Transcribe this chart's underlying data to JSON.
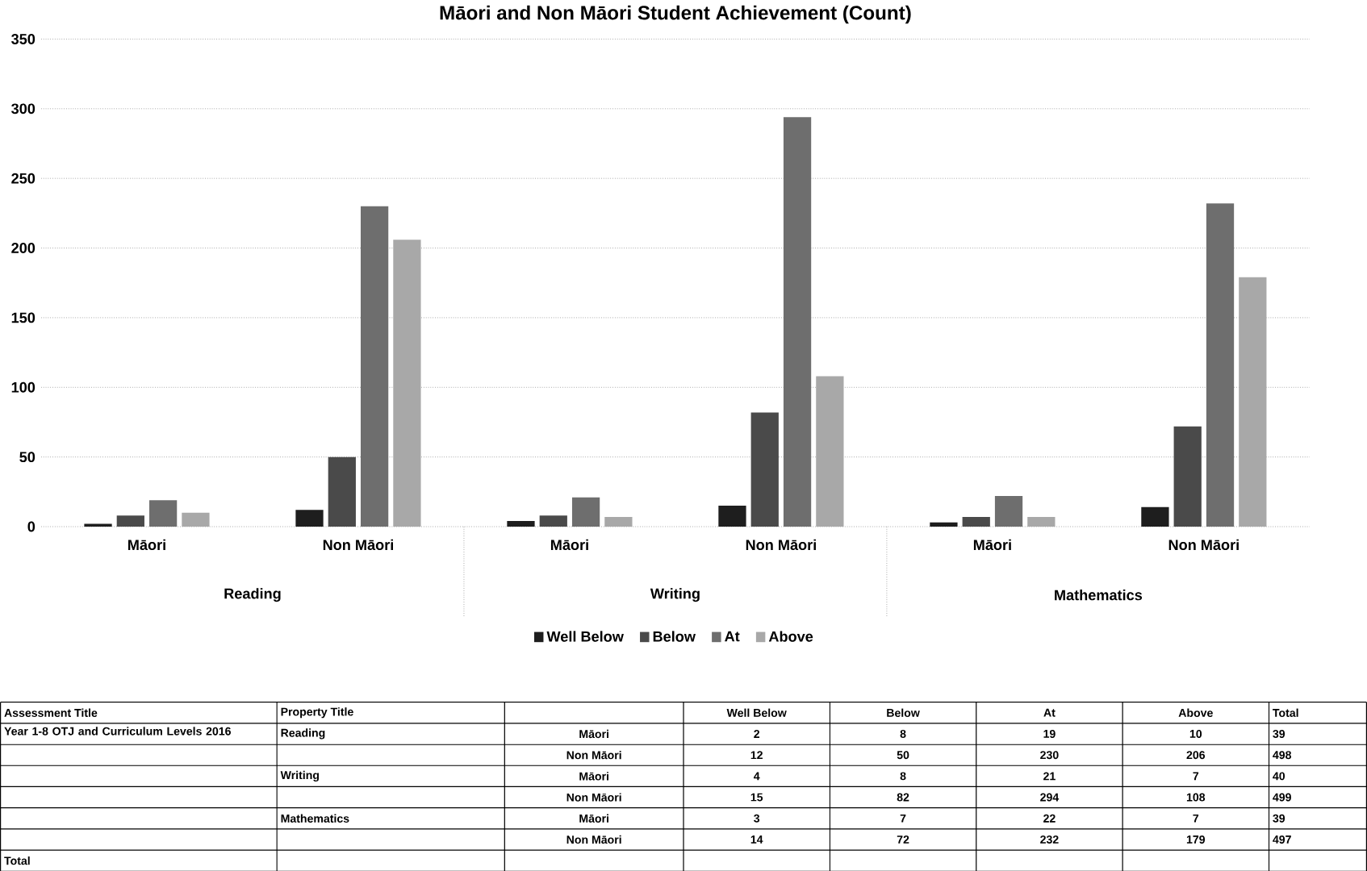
{
  "chart_data": {
    "type": "bar",
    "title": "Māori and Non Māori Student Achievement (Count)",
    "categories": [
      "Māori",
      "Non Māori",
      "Māori",
      "Non Māori",
      "Māori",
      "Non Māori"
    ],
    "series": [
      {
        "name": "Well Below",
        "color": "#1e1e1e",
        "values": [
          2,
          12,
          4,
          15,
          3,
          14
        ]
      },
      {
        "name": "Below",
        "color": "#4a4a4a",
        "values": [
          8,
          50,
          8,
          82,
          7,
          72
        ]
      },
      {
        "name": "At",
        "color": "#6e6e6e",
        "values": [
          19,
          230,
          21,
          294,
          22,
          232
        ]
      },
      {
        "name": "Above",
        "color": "#a8a8a8",
        "values": [
          10,
          206,
          7,
          108,
          7,
          179
        ]
      }
    ],
    "ylim": [
      0,
      350
    ],
    "yticks": [
      0,
      50,
      100,
      150,
      200,
      250,
      300,
      350
    ],
    "grid": "y",
    "legend": "bottom",
    "annotations": [
      "Reading",
      "Writing",
      "Mathematics",
      "Assessment Title",
      "Property Title",
      "Total",
      "Year 1-8 OTJ and Curriculum Levels 2016",
      "Total",
      "2",
      "8",
      "19",
      "10",
      "39",
      "12",
      "50",
      "230",
      "206",
      "498",
      "4",
      "8",
      "21",
      "7",
      "40",
      "15",
      "82",
      "294",
      "108",
      "499",
      "3",
      "7",
      "22",
      "7",
      "39",
      "14",
      "72",
      "232",
      "179",
      "497"
    ]
  }
}
